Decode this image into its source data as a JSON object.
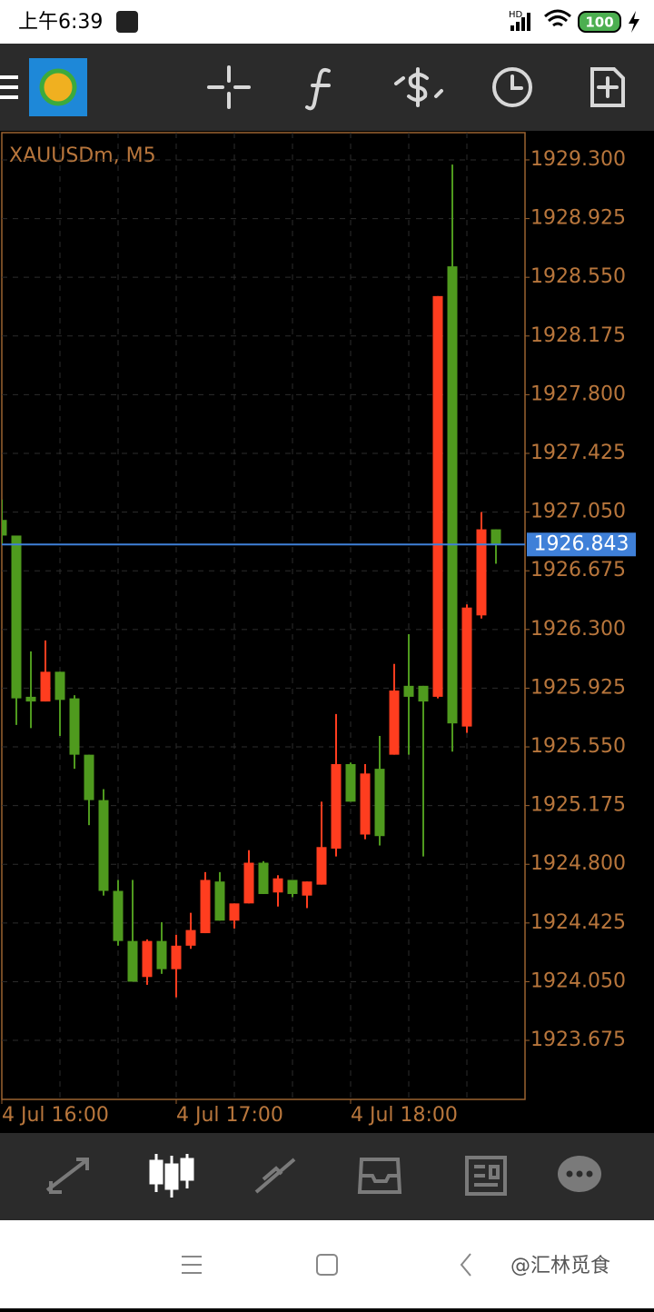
{
  "status_bar": {
    "time": "上午6:39",
    "network": "HD",
    "battery": "100"
  },
  "watermark": "@汇林觅食",
  "chart_data": {
    "type": "candlestick",
    "title": "XAUUSDm, M5",
    "categories": [
      "4 Jul 16:00",
      null,
      null,
      null,
      null,
      null,
      null,
      null,
      null,
      null,
      null,
      null,
      "4 Jul 17:00",
      null,
      null,
      null,
      null,
      null,
      null,
      null,
      null,
      null,
      null,
      null,
      "4 Jul 18:00",
      null,
      null,
      null,
      null,
      null,
      null,
      null,
      null,
      null,
      null
    ],
    "open": [
      1927.0,
      1926.9,
      1925.87,
      1925.84,
      1926.03,
      1925.86,
      1925.5,
      1925.21,
      1924.63,
      1924.31,
      1924.08,
      1924.31,
      1924.13,
      1924.28,
      1924.36,
      1924.69,
      1924.44,
      1924.55,
      1924.81,
      1924.62,
      1924.7,
      1924.6,
      1924.67,
      1924.9,
      1925.44,
      1924.99,
      1925.41,
      1925.5,
      1925.94,
      1925.94,
      1925.87,
      1928.62,
      1925.68,
      1926.39,
      1926.94
    ],
    "high": [
      1927.13,
      1926.9,
      1926.16,
      1926.23,
      1926.03,
      1925.88,
      1925.5,
      1925.28,
      1924.7,
      1924.7,
      1924.32,
      1924.43,
      1924.35,
      1924.49,
      1924.75,
      1924.75,
      1924.55,
      1924.89,
      1924.82,
      1924.73,
      1924.7,
      1924.69,
      1925.2,
      1925.76,
      1925.45,
      1925.44,
      1925.62,
      1926.08,
      1926.27,
      1925.94,
      1928.43,
      1929.27,
      1926.46,
      1927.05,
      1926.94
    ],
    "low": [
      1926.84,
      1925.69,
      1925.67,
      1925.84,
      1925.62,
      1925.41,
      1925.05,
      1924.6,
      1924.28,
      1924.05,
      1924.03,
      1924.1,
      1923.95,
      1924.26,
      1924.36,
      1924.44,
      1924.39,
      1924.55,
      1924.61,
      1924.53,
      1924.59,
      1924.52,
      1924.67,
      1924.85,
      1925.2,
      1924.96,
      1924.92,
      1925.5,
      1925.5,
      1924.85,
      1925.86,
      1925.52,
      1925.64,
      1926.37,
      1926.72
    ],
    "close": [
      1926.9,
      1925.86,
      1925.84,
      1926.03,
      1925.85,
      1925.5,
      1925.21,
      1924.63,
      1924.31,
      1924.05,
      1924.31,
      1924.13,
      1924.28,
      1924.38,
      1924.7,
      1924.44,
      1924.55,
      1924.81,
      1924.61,
      1924.71,
      1924.61,
      1924.69,
      1924.91,
      1925.44,
      1925.2,
      1925.38,
      1924.98,
      1925.91,
      1925.87,
      1925.84,
      1928.43,
      1925.7,
      1926.44,
      1926.94,
      1926.843
    ],
    "up_color": "#ff3d1f",
    "down_color": "#4f9a1e",
    "ylim": [
      1923.298,
      1929.474
    ],
    "yticks": [
      {
        "value": 1929.3,
        "label": "1929.300"
      },
      {
        "value": 1928.925,
        "label": "1928.925"
      },
      {
        "value": 1928.55,
        "label": "1928.550"
      },
      {
        "value": 1928.175,
        "label": "1928.175"
      },
      {
        "value": 1927.8,
        "label": "1927.800"
      },
      {
        "value": 1927.425,
        "label": "1927.425"
      },
      {
        "value": 1927.05,
        "label": "1927.050"
      },
      {
        "value": 1926.675,
        "label": "1926.675"
      },
      {
        "value": 1926.3,
        "label": "1926.300"
      },
      {
        "value": 1925.925,
        "label": "1925.925"
      },
      {
        "value": 1925.55,
        "label": "1925.550"
      },
      {
        "value": 1925.175,
        "label": "1925.175"
      },
      {
        "value": 1924.8,
        "label": "1924.800"
      },
      {
        "value": 1924.425,
        "label": "1924.425"
      },
      {
        "value": 1924.05,
        "label": "1924.050"
      },
      {
        "value": 1923.675,
        "label": "1923.675"
      }
    ],
    "grid": true,
    "current_price": 1926.843,
    "current_price_color": "#3f80d8"
  }
}
